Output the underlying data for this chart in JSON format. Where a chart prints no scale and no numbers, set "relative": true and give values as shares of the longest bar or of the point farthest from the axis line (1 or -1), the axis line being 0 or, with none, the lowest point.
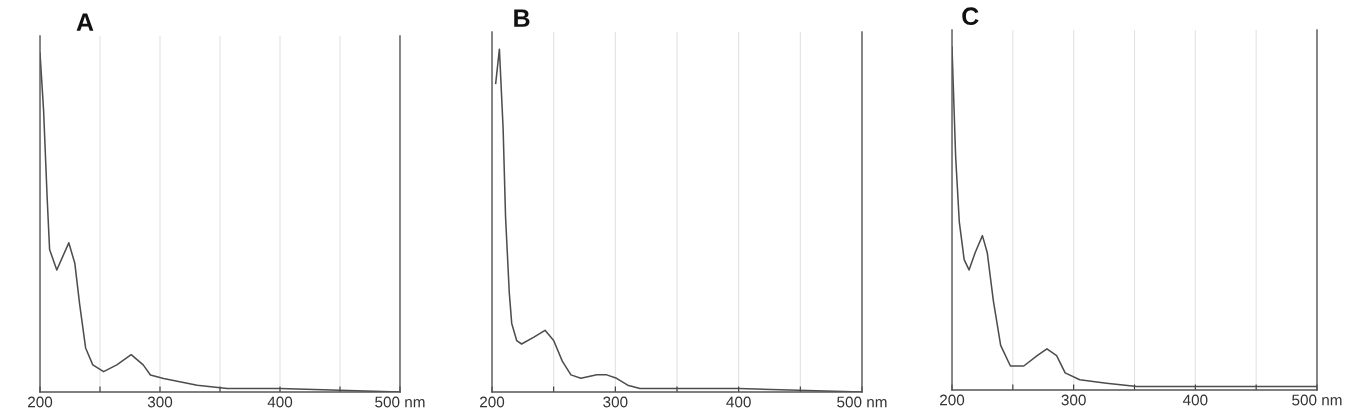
{
  "chart_data": [
    {
      "type": "line",
      "title": "A",
      "relative": true,
      "color": "#4d4d4d",
      "x": [
        200,
        203,
        206,
        208,
        214,
        219,
        224,
        229,
        233,
        238,
        244,
        253,
        264,
        276,
        286,
        292,
        303,
        331,
        356,
        400,
        500
      ],
      "values": [
        1.0,
        0.83,
        0.57,
        0.42,
        0.36,
        0.4,
        0.44,
        0.38,
        0.26,
        0.13,
        0.08,
        0.06,
        0.08,
        0.11,
        0.08,
        0.05,
        0.04,
        0.02,
        0.01,
        0.01,
        0.0
      ],
      "xlim": [
        200,
        500
      ],
      "xticks": [
        200,
        {
          "value": 250,
          "label": null
        },
        300,
        {
          "value": 350,
          "label": null
        },
        400,
        {
          "value": 450,
          "label": null
        },
        {
          "value": 500,
          "label": "500 nm"
        }
      ],
      "grid": "x",
      "tick_labels": "x"
    },
    {
      "type": "line",
      "title": "B",
      "relative": true,
      "color": "#4d4d4d",
      "x": [
        203,
        206,
        209,
        211,
        214,
        216,
        220,
        224,
        234,
        243,
        250,
        257,
        264,
        272,
        285,
        293,
        301,
        310,
        320,
        400,
        500
      ],
      "values": [
        0.9,
        1.0,
        0.77,
        0.51,
        0.29,
        0.2,
        0.15,
        0.14,
        0.16,
        0.18,
        0.15,
        0.09,
        0.05,
        0.04,
        0.05,
        0.05,
        0.04,
        0.02,
        0.01,
        0.01,
        0.0
      ],
      "xlim": [
        200,
        500
      ],
      "xticks": [
        200,
        {
          "value": 250,
          "label": null
        },
        300,
        {
          "value": 350,
          "label": null
        },
        400,
        {
          "value": 450,
          "label": null
        },
        {
          "value": 500,
          "label": "500 nm"
        }
      ],
      "grid": "x",
      "tick_labels": "x"
    },
    {
      "type": "line",
      "title": "C",
      "relative": true,
      "color": "#4d4d4d",
      "x": [
        200,
        203,
        206,
        210,
        214,
        219,
        225,
        229,
        234,
        240,
        248,
        259,
        270,
        278,
        286,
        293,
        305,
        327,
        352,
        400,
        500
      ],
      "values": [
        1.0,
        0.68,
        0.49,
        0.38,
        0.35,
        0.4,
        0.45,
        0.4,
        0.26,
        0.13,
        0.07,
        0.07,
        0.1,
        0.12,
        0.1,
        0.05,
        0.03,
        0.02,
        0.01,
        0.01,
        0.01
      ],
      "xlim": [
        200,
        500
      ],
      "xticks": [
        200,
        {
          "value": 250,
          "label": null
        },
        300,
        {
          "value": 350,
          "label": null
        },
        400,
        {
          "value": 450,
          "label": null
        },
        {
          "value": 500,
          "label": "500 nm"
        }
      ],
      "grid": "x",
      "tick_labels": "x"
    }
  ]
}
